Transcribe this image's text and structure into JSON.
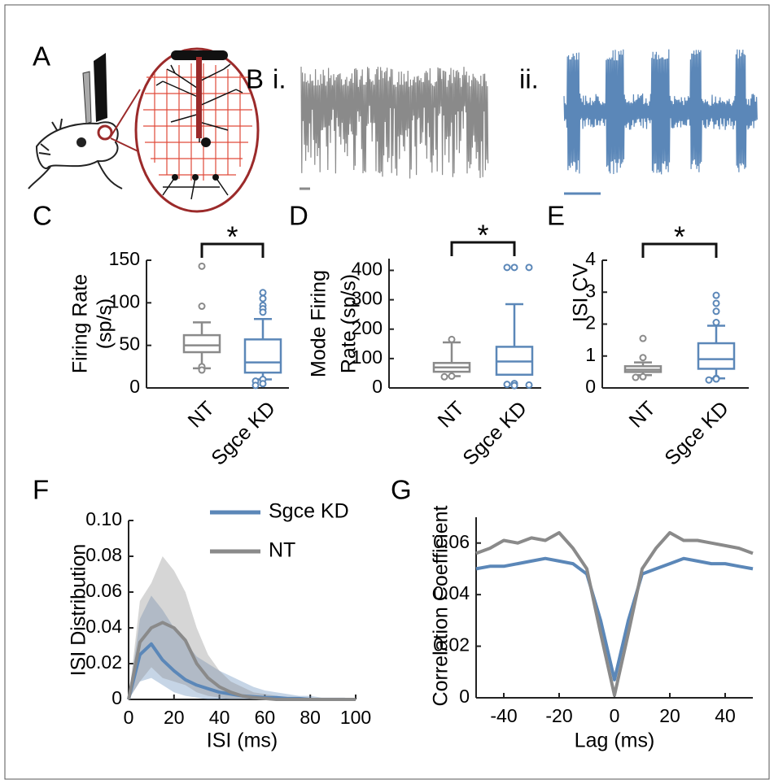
{
  "figure_labels": [
    "A",
    "B",
    "i.",
    "ii.",
    "C",
    "D",
    "E",
    "F",
    "G"
  ],
  "chart_data": [
    {
      "type": "box",
      "ylabel": [
        "Firing Rate",
        "(sp/s)"
      ],
      "categories": [
        "NT",
        "Sgce KD"
      ],
      "colors": [
        "#8a8a8a",
        "#5b87b8"
      ],
      "boxes": [
        {
          "whislo": 23,
          "q1": 42,
          "med": 50,
          "q3": 62,
          "whishi": 77,
          "fliers": [
            143,
            96,
            25,
            21
          ]
        },
        {
          "whislo": 10,
          "q1": 18,
          "med": 30,
          "q3": 57,
          "whishi": 81,
          "fliers": [
            112,
            105,
            97,
            93,
            89,
            10,
            8,
            5,
            3
          ]
        }
      ],
      "ylim": [
        0,
        150
      ],
      "yticks": [
        0,
        50,
        100,
        150
      ],
      "annotation": "*"
    },
    {
      "type": "box",
      "ylabel": [
        "Mode Firing",
        "Rate (sp/s)"
      ],
      "categories": [
        "NT",
        "Sgce KD"
      ],
      "colors": [
        "#8a8a8a",
        "#5b87b8"
      ],
      "boxes": [
        {
          "whislo": 40,
          "q1": 55,
          "med": 70,
          "q3": 85,
          "whishi": 155,
          "fliers": [
            165,
            40,
            38
          ]
        },
        {
          "whislo": 45,
          "q1": 45,
          "med": 90,
          "q3": 140,
          "whishi": 285,
          "fliers": [
            410,
            410,
            410,
            15,
            12,
            10,
            8
          ]
        }
      ],
      "ylim": [
        0,
        440
      ],
      "yticks": [
        0,
        100,
        200,
        300,
        400
      ],
      "annotation": "*"
    },
    {
      "type": "box",
      "ylabel": [
        "ISI CV"
      ],
      "categories": [
        "NT",
        "Sgce KD"
      ],
      "colors": [
        "#8a8a8a",
        "#5b87b8"
      ],
      "boxes": [
        {
          "whislo": 0.4,
          "q1": 0.5,
          "med": 0.57,
          "q3": 0.68,
          "whishi": 0.8,
          "fliers": [
            1.55,
            0.95,
            0.35,
            0.33
          ]
        },
        {
          "whislo": 0.3,
          "q1": 0.6,
          "med": 0.9,
          "q3": 1.4,
          "whishi": 1.95,
          "fliers": [
            2.9,
            2.65,
            2.4,
            2.05,
            0.3,
            0.28,
            0.25
          ]
        }
      ],
      "ylim": [
        0,
        4
      ],
      "yticks": [
        0,
        1,
        2,
        3,
        4
      ],
      "annotation": "*"
    },
    {
      "type": "line",
      "ylabel": "ISI Distribution",
      "xlabel": "ISI (ms)",
      "x": [
        0,
        5,
        10,
        15,
        20,
        25,
        30,
        35,
        40,
        45,
        50,
        55,
        60,
        65,
        70,
        75,
        80,
        85,
        90,
        95,
        100
      ],
      "series": [
        {
          "name": "Sgce KD",
          "color": "#5b87b8",
          "values": [
            0,
            0.025,
            0.031,
            0.022,
            0.016,
            0.011,
            0.008,
            0.006,
            0.004,
            0.003,
            0.002,
            0.0015,
            0.001,
            0.001,
            0.0005,
            0.0005,
            0,
            0,
            0,
            0,
            0
          ],
          "upper": [
            0,
            0.045,
            0.058,
            0.05,
            0.04,
            0.032,
            0.024,
            0.02,
            0.016,
            0.013,
            0.01,
            0.007,
            0.005,
            0.004,
            0.003,
            0.002,
            0.002,
            0.001,
            0.001,
            0.001,
            0
          ],
          "lower": [
            0,
            0.01,
            0.012,
            0.008,
            0.004,
            0.002,
            0.001,
            0,
            0,
            0,
            0,
            0,
            0,
            0,
            0,
            0,
            0,
            0,
            0,
            0,
            0
          ]
        },
        {
          "name": "NT",
          "color": "#8a8a8a",
          "values": [
            0,
            0.032,
            0.04,
            0.043,
            0.04,
            0.033,
            0.02,
            0.012,
            0.007,
            0.004,
            0.002,
            0.001,
            0.0005,
            0,
            0,
            0,
            0,
            0,
            0,
            0,
            0
          ],
          "upper": [
            0,
            0.055,
            0.065,
            0.08,
            0.072,
            0.06,
            0.04,
            0.025,
            0.016,
            0.01,
            0.007,
            0.004,
            0.003,
            0.002,
            0.001,
            0,
            0,
            0,
            0,
            0,
            0
          ],
          "lower": [
            0,
            0.01,
            0.018,
            0.012,
            0.01,
            0.008,
            0.004,
            0.002,
            0.001,
            0,
            0,
            0,
            0,
            0,
            0,
            0,
            0,
            0,
            0,
            0,
            0
          ]
        }
      ],
      "xlim": [
        0,
        100
      ],
      "xticks": [
        0,
        20,
        40,
        60,
        80,
        100
      ],
      "ylim": [
        0,
        0.1
      ],
      "yticks": [
        0,
        0.02,
        0.04,
        0.06,
        0.08,
        {
          "value": 0.1,
          "label": "0.10"
        }
      ]
    },
    {
      "type": "line",
      "ylabel": "Correlation Coefficient",
      "xlabel": "Lag (ms)",
      "x": [
        -50,
        -45,
        -40,
        -35,
        -30,
        -25,
        -20,
        -15,
        -10,
        -5,
        0,
        5,
        10,
        15,
        20,
        25,
        30,
        35,
        40,
        45,
        50
      ],
      "series": [
        {
          "name": "Sgce KD",
          "color": "#5b87b8",
          "values": [
            0.05,
            0.051,
            0.051,
            0.052,
            0.053,
            0.054,
            0.053,
            0.052,
            0.048,
            0.03,
            0.007,
            0.03,
            0.048,
            0.05,
            0.052,
            0.054,
            0.053,
            0.052,
            0.052,
            0.051,
            0.05
          ]
        },
        {
          "name": "NT",
          "color": "#8a8a8a",
          "values": [
            0.056,
            0.058,
            0.061,
            0.06,
            0.062,
            0.061,
            0.064,
            0.058,
            0.05,
            0.025,
            0.001,
            0.025,
            0.05,
            0.058,
            0.064,
            0.061,
            0.061,
            0.06,
            0.059,
            0.058,
            0.056
          ]
        }
      ],
      "xlim": [
        -50,
        50
      ],
      "xticks": [
        -40,
        -20,
        0,
        20,
        40
      ],
      "ylim": [
        0,
        0.07
      ],
      "yticks": [
        0,
        0.02,
        0.04,
        0.06
      ]
    }
  ]
}
